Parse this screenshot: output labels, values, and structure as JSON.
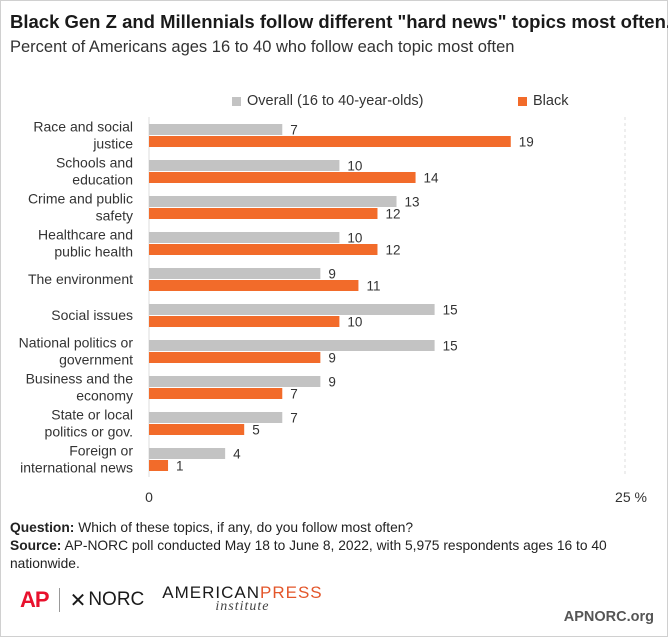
{
  "title": "Black Gen Z and Millennials follow different \"hard news\" topics most often.",
  "subtitle": "Percent of Americans ages 16 to 40 who follow each topic most often",
  "colors": {
    "overall": "#c3c3c3",
    "black": "#f26b2a",
    "gridline": "#dcdcdc"
  },
  "chart_data": {
    "type": "bar",
    "orientation": "horizontal",
    "categories": [
      [
        "Race and social",
        "justice"
      ],
      [
        "Schools and",
        "education"
      ],
      [
        "Crime and public",
        "safety"
      ],
      [
        "Healthcare and",
        "public health"
      ],
      [
        "The environment"
      ],
      [
        "Social issues"
      ],
      [
        "National politics or",
        "government"
      ],
      [
        "Business and the",
        "economy"
      ],
      [
        "State or local",
        "politics or gov."
      ],
      [
        "Foreign or",
        "international news"
      ]
    ],
    "series": [
      {
        "name": "Overall (16 to 40-year-olds)",
        "values": [
          7,
          10,
          13,
          10,
          9,
          15,
          15,
          9,
          7,
          4
        ]
      },
      {
        "name": "Black",
        "values": [
          19,
          14,
          12,
          12,
          11,
          10,
          9,
          7,
          5,
          1
        ]
      }
    ],
    "xlim": [
      0,
      25
    ],
    "x_ticks": [
      "0",
      "25 %"
    ],
    "legend_position": "top",
    "data_labels": true
  },
  "footer": {
    "question_label": "Question:",
    "question_text": "Which of these topics, if any, do you follow most often?",
    "source_label": "Source:",
    "source_text": "AP-NORC poll conducted May 18 to June 8, 2022, with 5,975 respondents ages 16 to 40 nationwide."
  },
  "logos": {
    "ap": "AP",
    "norc": "NORC",
    "api_part1": "AMERICAN",
    "api_part2": "PRESS",
    "api_sub": "institute"
  },
  "site": "APNORC.org"
}
